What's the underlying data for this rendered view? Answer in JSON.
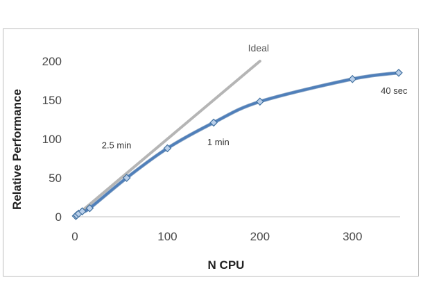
{
  "chart_data": {
    "type": "line",
    "xlabel": "N CPU",
    "ylabel": "Relative Performance",
    "xlim": [
      0,
      350
    ],
    "ylim": [
      0,
      200
    ],
    "x_ticks": [
      0,
      100,
      200,
      300
    ],
    "y_ticks": [
      0,
      50,
      100,
      150,
      200
    ],
    "grid": false,
    "series": [
      {
        "name": "Ideal",
        "color": "#b5b5b5",
        "x": [
          0,
          200
        ],
        "y": [
          0,
          200
        ]
      },
      {
        "name": "",
        "color": "#4f7fba",
        "marker": "diamond",
        "x": [
          1,
          2,
          4,
          8,
          16,
          56,
          100,
          150,
          200,
          300,
          350
        ],
        "y": [
          1,
          2,
          4,
          7,
          11,
          50,
          88,
          121,
          148,
          177,
          185
        ]
      }
    ],
    "annotations": [
      {
        "text": "2.5 min",
        "x": 45,
        "y": 88
      },
      {
        "text": "1 min",
        "x": 155,
        "y": 92
      },
      {
        "text": "40 sec",
        "x": 345,
        "y": 158
      }
    ]
  }
}
